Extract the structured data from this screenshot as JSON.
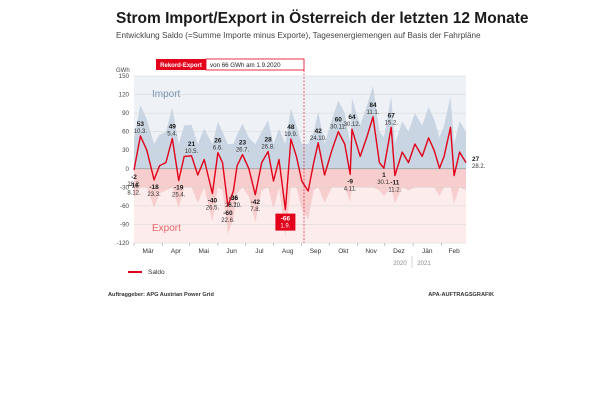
{
  "header": {
    "title": "Strom Import/Export in Österreich der letzten 12 Monate",
    "subtitle": "Entwicklung Saldo (=Summe Importe minus Exporte), Tagesenergiemengen auf Basis der Fahrpläne"
  },
  "footer": {
    "client": "Auftraggeber: APG Austrian Power Grid",
    "source": "APA-AUFTRAGSGRAFIK"
  },
  "colors": {
    "saldo": "#e2001a",
    "import_band": "#bccbdb",
    "export_band": "#f6c9c8",
    "import_label": "#7a93ad",
    "export_label": "#e8676a",
    "grid": "#d4d4d4",
    "highlight_box": "#e2001a"
  },
  "chart_data": {
    "type": "line",
    "title": "Strom Import/Export in Österreich der letzten 12 Monate",
    "ylabel": "GWh",
    "ylim": [
      -120,
      150
    ],
    "yticks": [
      150,
      120,
      90,
      60,
      30,
      0,
      -30,
      -60,
      -90,
      -120
    ],
    "grid": true,
    "x_categories": [
      "Mär",
      "Apr",
      "Mai",
      "Jun",
      "Jul",
      "Aug",
      "Sep",
      "Okt",
      "Nov",
      "Dez",
      "Jän",
      "Feb"
    ],
    "year_labels": [
      "2020",
      "2021"
    ],
    "band_labels": {
      "import": "Import",
      "export": "Export"
    },
    "legend": {
      "label": "Saldo",
      "position": "bottom-left"
    },
    "record_callout": {
      "tag": "Rekord-Export",
      "text": "von 66 GWh am 1.9.2020"
    },
    "series": [
      {
        "name": "Saldo",
        "x": [
          "2020-03-01",
          "2020-03-08",
          "2020-03-15",
          "2020-03-23",
          "2020-03-29",
          "2020-04-05",
          "2020-04-12",
          "2020-04-19",
          "2020-04-25",
          "2020-05-03",
          "2020-05-10",
          "2020-05-17",
          "2020-05-26",
          "2020-06-01",
          "2020-06-06",
          "2020-06-12",
          "2020-06-18",
          "2020-06-22",
          "2020-06-28",
          "2020-07-05",
          "2020-07-12",
          "2020-07-19",
          "2020-07-26",
          "2020-08-01",
          "2020-08-07",
          "2020-08-14",
          "2020-08-20",
          "2020-08-26",
          "2020-09-01",
          "2020-09-08",
          "2020-09-14",
          "2020-09-19",
          "2020-09-26",
          "2020-10-04",
          "2020-10-11",
          "2020-10-18",
          "2020-10-24",
          "2020-10-26",
          "2020-11-04",
          "2020-11-11",
          "2020-11-18",
          "2020-11-25",
          "2020-11-30",
          "2020-12-08",
          "2020-12-12",
          "2020-12-20",
          "2020-12-27",
          "2021-01-03",
          "2021-01-11",
          "2021-01-18",
          "2021-01-24",
          "2021-01-30",
          "2021-02-04",
          "2021-02-11",
          "2021-02-15",
          "2021-02-21",
          "2021-02-28"
        ],
        "y": [
          -2,
          53,
          30,
          -18,
          5,
          10,
          49,
          -19,
          20,
          21,
          -10,
          15,
          -40,
          26,
          10,
          -60,
          -36,
          5,
          23,
          0,
          -42,
          10,
          28,
          -20,
          15,
          -66,
          48,
          20,
          -20,
          -36,
          10,
          42,
          -10,
          30,
          60,
          40,
          -9,
          64,
          20,
          50,
          84,
          10,
          1,
          67,
          -11,
          27,
          10,
          40,
          20,
          50,
          30,
          1,
          20,
          67,
          -11,
          27,
          10
        ],
        "annotations": [
          {
            "date": "28.2.",
            "value": "-2",
            "side": "below"
          },
          {
            "date": "10.3.",
            "value": "53",
            "side": "above"
          },
          {
            "date": "23.3.",
            "value": "-18",
            "side": "below"
          },
          {
            "date": "5.4.",
            "value": "49",
            "side": "above"
          },
          {
            "date": "25.4.",
            "value": "-19",
            "side": "below"
          },
          {
            "date": "10.5.",
            "value": "21",
            "side": "above"
          },
          {
            "date": "26.5.",
            "value": "-40",
            "side": "below"
          },
          {
            "date": "6.6.",
            "value": "26",
            "side": "above"
          },
          {
            "date": "22.6.",
            "value": "-60",
            "side": "below"
          },
          {
            "date": "8.7.",
            "value": "-36",
            "side": "below"
          },
          {
            "date": "26.7.",
            "value": "23",
            "side": "above"
          },
          {
            "date": "7.8.",
            "value": "-42",
            "side": "below"
          },
          {
            "date": "26.8.",
            "value": "28",
            "side": "above"
          },
          {
            "date": "1.9.",
            "value": "-66",
            "side": "below",
            "highlight": true
          },
          {
            "date": "19.9.",
            "value": "48",
            "side": "above"
          },
          {
            "date": "24.10.",
            "value": "42",
            "side": "above"
          },
          {
            "date": "26.10.",
            "value": "-36",
            "side": "below"
          },
          {
            "date": "30.11.",
            "value": "60",
            "side": "above"
          },
          {
            "date": "4.11.",
            "value": "-9",
            "side": "below"
          },
          {
            "date": "30.12.",
            "value": "64",
            "side": "above"
          },
          {
            "date": "8.12.",
            "value": "-16",
            "side": "below"
          },
          {
            "date": "11.1.",
            "value": "84",
            "side": "above"
          },
          {
            "date": "30.1.",
            "value": "1",
            "side": "below"
          },
          {
            "date": "15.2.",
            "value": "67",
            "side": "above"
          },
          {
            "date": "11.2.",
            "value": "-11",
            "side": "below"
          },
          {
            "date": "28.2.",
            "value": "27",
            "side": "right"
          }
        ]
      }
    ]
  }
}
